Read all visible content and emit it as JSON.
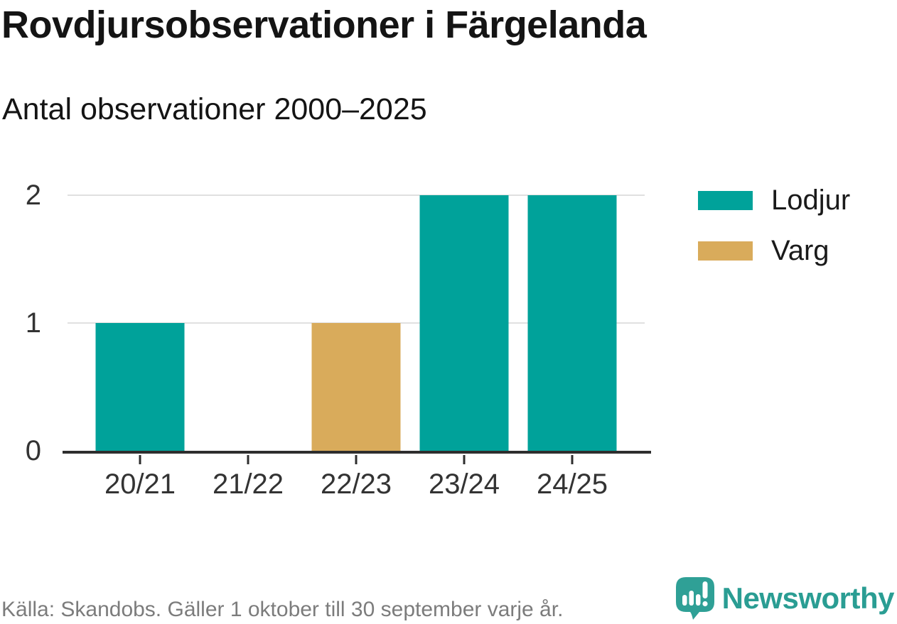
{
  "header": {
    "title": "Rovdjursobservationer i Färgelanda",
    "subtitle": "Antal observationer 2000–2025"
  },
  "chart_data": {
    "type": "bar",
    "title": "Rovdjursobservationer i Färgelanda",
    "subtitle": "Antal observationer 2000–2025",
    "categories": [
      "20/21",
      "21/22",
      "22/23",
      "23/24",
      "24/25"
    ],
    "series": [
      {
        "name": "Lodjur",
        "color": "#00a29a",
        "values": [
          1,
          0,
          0,
          2,
          2
        ]
      },
      {
        "name": "Varg",
        "color": "#d9ab5b",
        "values": [
          0,
          0,
          1,
          0,
          0
        ]
      }
    ],
    "xlabel": "",
    "ylabel": "",
    "ylim": [
      0,
      2
    ],
    "yticks": [
      0,
      1,
      2
    ],
    "grid": true,
    "legend_position": "right-top"
  },
  "footer": {
    "source": "Källa: Skandobs. Gäller 1 oktober till 30 september varje år.",
    "brand": "Newsworthy"
  },
  "colors": {
    "lodjur_teal": "#00a29a",
    "varg_gold": "#d9ab5b",
    "gridline": "#e0e0e0",
    "axis": "#2e2e2e",
    "axis_text": "#333333",
    "heading_text": "#141414",
    "muted_text": "#7c7c7c",
    "brand_teal": "#2a9d93"
  }
}
